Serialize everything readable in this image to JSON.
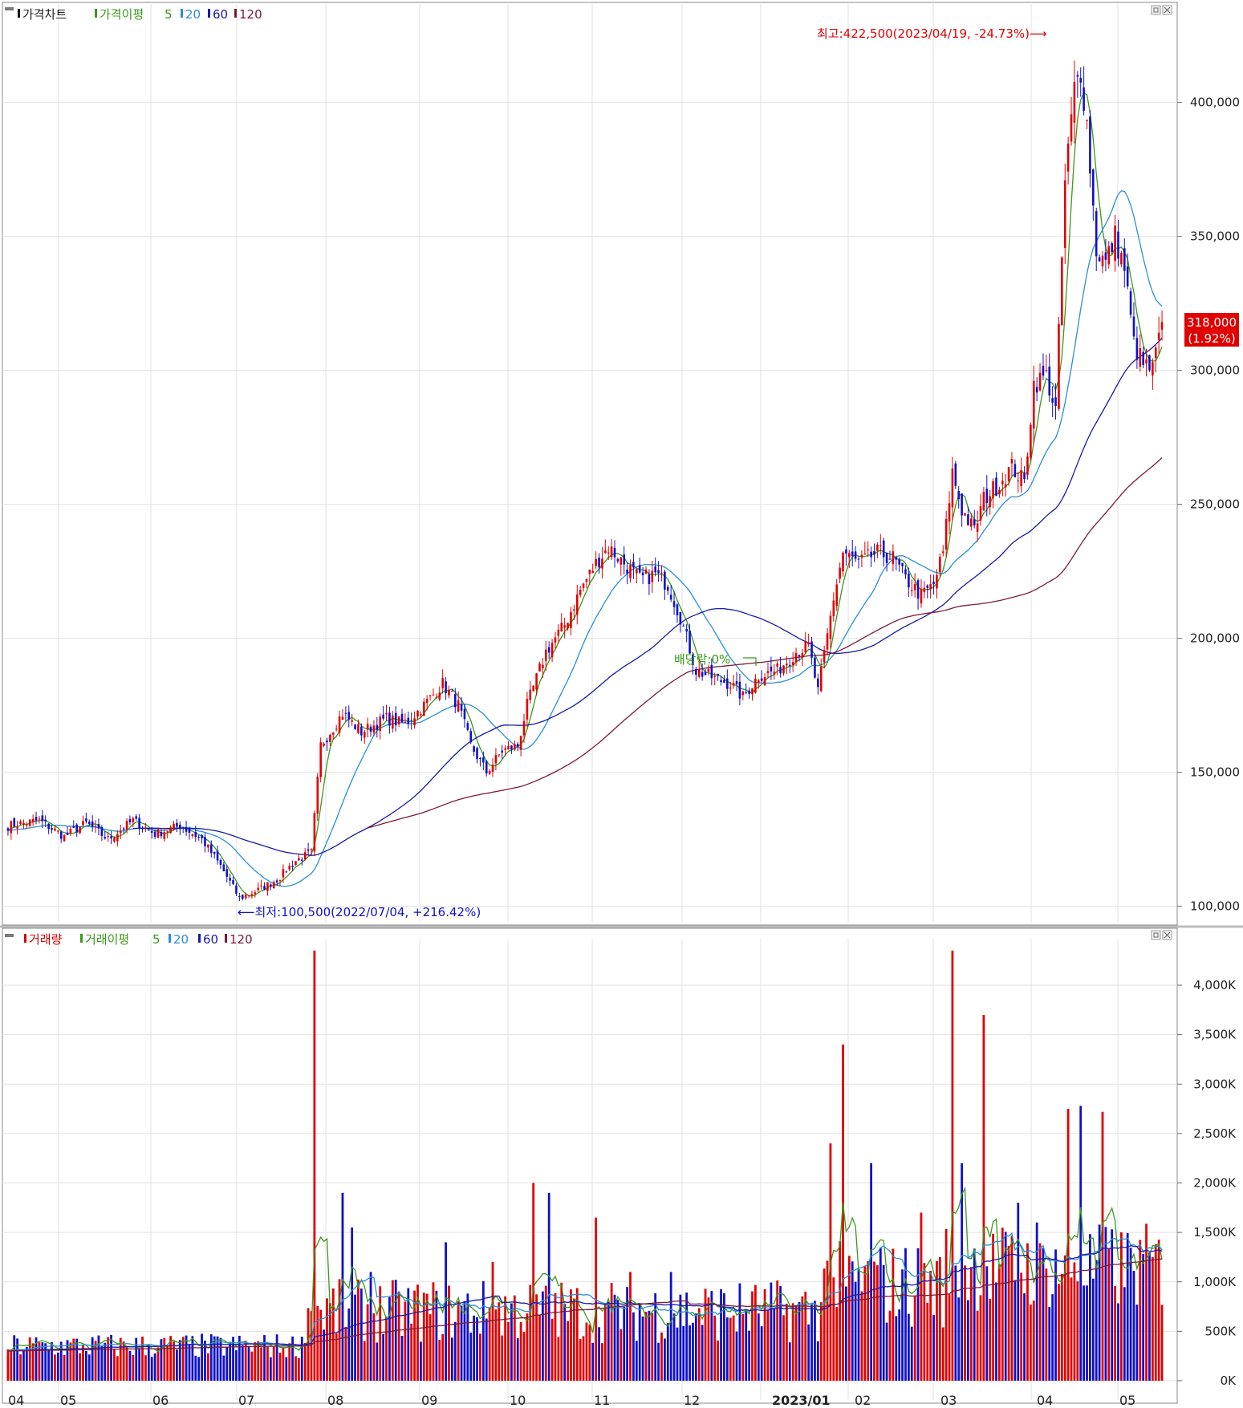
{
  "price_panel": {
    "legend": [
      {
        "label": "가격차트",
        "color": "#111111"
      },
      {
        "label": "가격이평",
        "color": "#3a9a1a"
      },
      {
        "label": "5",
        "color": "#3a9a1a"
      },
      {
        "label": "20",
        "color": "#2a8fd6"
      },
      {
        "label": "60",
        "color": "#1a1aa8"
      },
      {
        "label": "120",
        "color": "#7a1a3a"
      }
    ],
    "high_annotation": "최고:422,500(2023/04/19, -24.73%)⟶",
    "low_annotation": "⟵최저:100,500(2022/07/04, +216.42%)",
    "dividend_annotation": "배당락:0%",
    "last_price": "318,000",
    "last_change": "(1.92%)",
    "yticks": [
      "400,000",
      "350,000",
      "300,000",
      "250,000",
      "200,000",
      "150,000",
      "100,000"
    ]
  },
  "volume_panel": {
    "legend": [
      {
        "label": "거래량",
        "color": "#d40000"
      },
      {
        "label": "거래이평",
        "color": "#3a9a1a"
      },
      {
        "label": "5",
        "color": "#3a9a1a"
      },
      {
        "label": "20",
        "color": "#2a8fd6"
      },
      {
        "label": "60",
        "color": "#1a1aa8"
      },
      {
        "label": "120",
        "color": "#7a1a3a"
      }
    ],
    "yticks": [
      "4,000K",
      "3,500K",
      "3,000K",
      "2,500K",
      "2,000K",
      "1,500K",
      "1,000K",
      "500K",
      "0K"
    ]
  },
  "xticks": [
    "04",
    "05",
    "06",
    "07",
    "08",
    "09",
    "10",
    "11",
    "12",
    "2023/01",
    "02",
    "03",
    "04",
    "05"
  ],
  "colors": {
    "up": "#e00000",
    "down": "#1010c8",
    "grid": "#e2e2e2",
    "ma5": "#3a9a1a",
    "ma20": "#2a8fd6",
    "ma60": "#1a1aa8",
    "ma120": "#7a1a3a"
  },
  "chart_data": [
    {
      "type": "candlestick",
      "title": "가격차트",
      "ylim": [
        97000,
        432000
      ],
      "yticks": [
        100000,
        150000,
        200000,
        250000,
        300000,
        350000,
        400000
      ],
      "x": [
        "2022-04",
        "2022-05",
        "2022-06",
        "2022-07",
        "2022-08",
        "2022-09",
        "2022-10",
        "2022-11",
        "2022-12",
        "2023-01",
        "2023-02",
        "2023-03",
        "2023-04",
        "2023-05"
      ],
      "close_anchors": [
        [
          0,
          130000
        ],
        [
          10,
          132000
        ],
        [
          18,
          126000
        ],
        [
          25,
          131000
        ],
        [
          32,
          125000
        ],
        [
          40,
          132000
        ],
        [
          47,
          127000
        ],
        [
          55,
          130000
        ],
        [
          62,
          125000
        ],
        [
          68,
          115000
        ],
        [
          74,
          103000
        ],
        [
          80,
          106000
        ],
        [
          86,
          110000
        ],
        [
          92,
          117000
        ],
        [
          97,
          120000
        ],
        [
          100,
          160000
        ],
        [
          107,
          172000
        ],
        [
          113,
          165000
        ],
        [
          121,
          170000
        ],
        [
          127,
          168000
        ],
        [
          133,
          175000
        ],
        [
          139,
          183000
        ],
        [
          144,
          175000
        ],
        [
          148,
          160000
        ],
        [
          153,
          150000
        ],
        [
          158,
          158000
        ],
        [
          163,
          160000
        ],
        [
          166,
          175000
        ],
        [
          172,
          195000
        ],
        [
          178,
          205000
        ],
        [
          183,
          218000
        ],
        [
          188,
          228000
        ],
        [
          192,
          234000
        ],
        [
          197,
          228000
        ],
        [
          202,
          222000
        ],
        [
          207,
          224000
        ],
        [
          211,
          220000
        ],
        [
          215,
          208000
        ],
        [
          220,
          188000
        ],
        [
          226,
          185000
        ],
        [
          231,
          183000
        ],
        [
          235,
          178000
        ],
        [
          240,
          186000
        ],
        [
          246,
          188000
        ],
        [
          252,
          195000
        ],
        [
          256,
          197000
        ],
        [
          259,
          180000
        ],
        [
          264,
          215000
        ],
        [
          267,
          232000
        ],
        [
          272,
          228000
        ],
        [
          278,
          232000
        ],
        [
          283,
          230000
        ],
        [
          287,
          222000
        ],
        [
          292,
          216000
        ],
        [
          296,
          220000
        ],
        [
          299,
          232000
        ],
        [
          302,
          262000
        ],
        [
          305,
          248000
        ],
        [
          309,
          240000
        ],
        [
          312,
          252000
        ],
        [
          317,
          258000
        ],
        [
          321,
          264000
        ],
        [
          325,
          258000
        ],
        [
          328,
          295000
        ],
        [
          332,
          298000
        ],
        [
          335,
          285000
        ],
        [
          338,
          370000
        ],
        [
          341,
          405000
        ],
        [
          343,
          412000
        ],
        [
          345,
          392000
        ],
        [
          348,
          345000
        ],
        [
          351,
          340000
        ],
        [
          354,
          350000
        ],
        [
          357,
          338000
        ],
        [
          360,
          310000
        ],
        [
          363,
          302000
        ],
        [
          366,
          300000
        ],
        [
          369,
          318000
        ]
      ],
      "series": [
        {
          "name": "5",
          "values": "moving average of close"
        },
        {
          "name": "20",
          "values": "moving average of close"
        },
        {
          "name": "60",
          "values": "moving average of close"
        },
        {
          "name": "120",
          "values": "moving average of close"
        }
      ],
      "annotations": [
        {
          "text": "최고:422,500(2023/04/19, -24.73%)",
          "date": "2023/04/19",
          "value": 422500
        },
        {
          "text": "최저:100,500(2022/07/04, +216.42%)",
          "date": "2022/07/04",
          "value": 100500
        },
        {
          "text": "배당락:0%"
        }
      ],
      "last": {
        "value": 318000,
        "change": "1.92%"
      }
    },
    {
      "type": "bar",
      "title": "거래량",
      "ylabel": "",
      "ylim": [
        0,
        4400
      ],
      "yticks": [
        0,
        500,
        1000,
        1500,
        2000,
        2500,
        3000,
        3500,
        4000
      ],
      "unit": "K",
      "spikes": [
        [
          98,
          4350
        ],
        [
          107,
          1900
        ],
        [
          110,
          1550
        ],
        [
          116,
          1100
        ],
        [
          140,
          1400
        ],
        [
          155,
          1200
        ],
        [
          168,
          2000
        ],
        [
          173,
          1900
        ],
        [
          188,
          1650
        ],
        [
          199,
          1100
        ],
        [
          212,
          1100
        ],
        [
          263,
          2400
        ],
        [
          267,
          3400
        ],
        [
          276,
          2200
        ],
        [
          292,
          1700
        ],
        [
          302,
          4350
        ],
        [
          305,
          2200
        ],
        [
          312,
          3700
        ],
        [
          323,
          1800
        ],
        [
          329,
          1600
        ],
        [
          339,
          2750
        ],
        [
          343,
          2780
        ],
        [
          350,
          2720
        ]
      ],
      "series": [
        {
          "name": "5",
          "values": "moving average of volume"
        },
        {
          "name": "20",
          "values": "moving average of volume"
        },
        {
          "name": "60",
          "values": "moving average of volume"
        },
        {
          "name": "120",
          "values": "moving average of volume"
        }
      ]
    }
  ]
}
